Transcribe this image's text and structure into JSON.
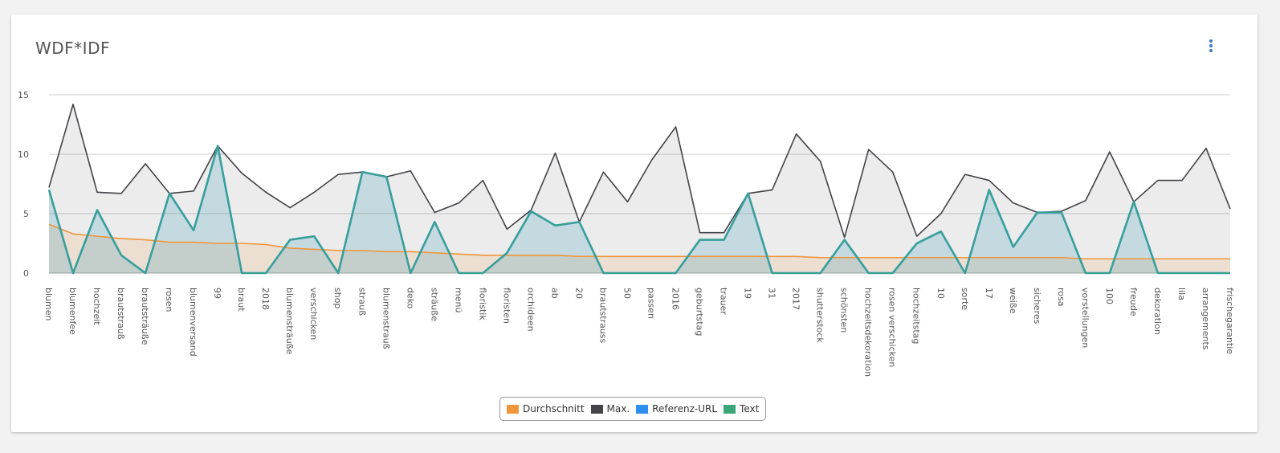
{
  "card": {
    "title": "WDF*IDF"
  },
  "chart_data": {
    "type": "area",
    "title": "WDF*IDF",
    "xlabel": "",
    "ylabel": "",
    "ylim": [
      0,
      15
    ],
    "yticks": [
      0,
      5,
      10,
      15
    ],
    "grid": true,
    "legend_position": "bottom",
    "categories": [
      "blumen",
      "blumenfee",
      "hochzeit",
      "brautstrauß",
      "brautsträuße",
      "rosen",
      "blumenversand",
      "99",
      "braut",
      "2018",
      "blumensträuße",
      "verschicken",
      "shop",
      "strauß",
      "blumenstrauß",
      "deko",
      "sträuße",
      "menü",
      "floristik",
      "floristen",
      "orchideen",
      "ab",
      "20",
      "brautstrauss",
      "50",
      "passen",
      "2016",
      "geburtstag",
      "trauer",
      "19",
      "31",
      "2017",
      "shutterstock",
      "schönsten",
      "hochzeitsdekoration",
      "rosen verschicken",
      "hochzeitstag",
      "10",
      "sorte",
      "17",
      "weiße",
      "sicheres",
      "rosa",
      "vorstellungen",
      "100",
      "freude",
      "dekoration",
      "lila",
      "arrangements",
      "frischegarantie"
    ],
    "series": [
      {
        "name": "Durchschnitt",
        "color": "#f0963a",
        "values": [
          4.1,
          3.3,
          3.1,
          2.9,
          2.8,
          2.6,
          2.6,
          2.5,
          2.5,
          2.4,
          2.1,
          2.0,
          1.9,
          1.9,
          1.8,
          1.8,
          1.7,
          1.6,
          1.5,
          1.5,
          1.5,
          1.5,
          1.4,
          1.4,
          1.4,
          1.4,
          1.4,
          1.4,
          1.4,
          1.4,
          1.4,
          1.4,
          1.3,
          1.3,
          1.3,
          1.3,
          1.3,
          1.3,
          1.3,
          1.3,
          1.3,
          1.3,
          1.3,
          1.2,
          1.2,
          1.2,
          1.2,
          1.2,
          1.2,
          1.2
        ]
      },
      {
        "name": "Max.",
        "color": "#434348",
        "values": [
          7.2,
          14.2,
          6.8,
          6.7,
          9.2,
          6.7,
          6.9,
          10.7,
          8.4,
          6.8,
          5.5,
          6.8,
          8.3,
          8.5,
          8.1,
          8.6,
          5.1,
          5.9,
          7.8,
          3.7,
          5.3,
          10.1,
          4.3,
          8.5,
          6.0,
          9.5,
          12.3,
          3.4,
          3.4,
          6.7,
          7.0,
          11.7,
          9.4,
          3.0,
          10.4,
          8.5,
          3.1,
          5.0,
          8.3,
          7.8,
          5.9,
          5.1,
          5.2,
          6.1,
          10.2,
          6.0,
          7.8,
          7.8,
          10.5,
          5.4
        ]
      },
      {
        "name": "Referenz-URL",
        "color": "#2d8ff0",
        "values": [
          7.0,
          0,
          5.3,
          1.5,
          0,
          6.7,
          3.6,
          10.7,
          0,
          0,
          2.8,
          3.1,
          0,
          8.5,
          8.1,
          0,
          4.3,
          0,
          0,
          1.7,
          5.2,
          4.0,
          4.3,
          0,
          0,
          0,
          0,
          2.8,
          2.8,
          6.7,
          0,
          0,
          0,
          2.8,
          0,
          0,
          2.5,
          3.5,
          0,
          7.0,
          2.2,
          5.1,
          5.1,
          0,
          0,
          6.0,
          0,
          0,
          0,
          0
        ]
      },
      {
        "name": "Text",
        "color": "#3ba57a",
        "values": [
          7.0,
          0,
          5.3,
          1.5,
          0,
          6.7,
          3.6,
          10.7,
          0,
          0,
          2.8,
          3.1,
          0,
          8.5,
          8.1,
          0,
          4.3,
          0,
          0,
          1.7,
          5.2,
          4.0,
          4.3,
          0,
          0,
          0,
          0,
          2.8,
          2.8,
          6.7,
          0,
          0,
          0,
          2.8,
          0,
          0,
          2.5,
          3.5,
          0,
          7.0,
          2.2,
          5.1,
          5.1,
          0,
          0,
          6.0,
          0,
          0,
          0,
          0
        ]
      }
    ]
  }
}
